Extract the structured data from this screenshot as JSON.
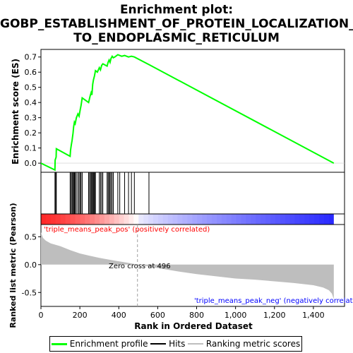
{
  "title_line1": "Enrichment plot:",
  "title_line2": "GOBP_ESTABLISHMENT_OF_PROTEIN_LOCALIZATION_",
  "title_line3": "TO_ENDOPLASMIC_RETICULUM",
  "colors": {
    "enrichment": "#00ff00",
    "hits": "#000000",
    "metric_fill": "#bebebe",
    "pos_label": "#ff0000",
    "neg_label": "#0000ff",
    "zero_cross_line": "#a0a0a0"
  },
  "legend": {
    "enrichment_profile": "Enrichment profile",
    "hits": "Hits",
    "ranking_metric_scores": "Ranking metric scores"
  },
  "annotations": {
    "pos_label": "'triple_means_peak_pos' (positively correlated)",
    "neg_label": "'triple_means_peak_neg' (negatively correlated)",
    "zero_cross": "Zero cross at 496"
  },
  "chart_data": {
    "type": "line",
    "x_range": [
      0,
      1560
    ],
    "x_ticks": [
      0,
      200,
      400,
      600,
      800,
      1000,
      1200,
      1400
    ],
    "x_tick_labels": [
      "0",
      "200",
      "400",
      "600",
      "800",
      "1,000",
      "1,200",
      "1,400"
    ],
    "xlabel": "Rank in Ordered Dataset",
    "enrichment": {
      "ylabel": "Enrichment score (ES)",
      "ylim": [
        -0.06,
        0.75
      ],
      "y_ticks": [
        0.0,
        0.1,
        0.2,
        0.3,
        0.4,
        0.5,
        0.6,
        0.7
      ],
      "y_tick_labels": [
        "0.0",
        "0.1",
        "0.2",
        "0.3",
        "0.4",
        "0.5",
        "0.6",
        "0.7"
      ],
      "x": [
        0,
        72,
        73,
        78,
        79,
        150,
        152,
        156,
        160,
        165,
        168,
        172,
        176,
        182,
        190,
        196,
        202,
        206,
        212,
        245,
        252,
        258,
        262,
        266,
        270,
        275,
        280,
        290,
        300,
        306,
        312,
        318,
        340,
        345,
        350,
        355,
        360,
        366,
        372,
        380,
        395,
        405,
        415,
        430,
        450,
        465,
        480,
        555,
        1505
      ],
      "y": [
        0.0,
        -0.045,
        0.02,
        0.04,
        0.095,
        0.045,
        0.085,
        0.12,
        0.15,
        0.2,
        0.24,
        0.27,
        0.26,
        0.3,
        0.325,
        0.31,
        0.355,
        0.38,
        0.43,
        0.4,
        0.44,
        0.465,
        0.45,
        0.52,
        0.55,
        0.575,
        0.61,
        0.6,
        0.63,
        0.615,
        0.645,
        0.655,
        0.64,
        0.665,
        0.68,
        0.665,
        0.69,
        0.705,
        0.695,
        0.7,
        0.715,
        0.71,
        0.705,
        0.71,
        0.7,
        0.705,
        0.7,
        0.65,
        0.0
      ]
    },
    "hits": [
      72,
      76,
      79,
      150,
      155,
      160,
      164,
      168,
      172,
      176,
      182,
      190,
      196,
      202,
      206,
      212,
      245,
      250,
      255,
      260,
      264,
      268,
      272,
      276,
      280,
      300,
      306,
      312,
      318,
      340,
      345,
      350,
      355,
      360,
      366,
      372,
      395,
      405,
      430,
      450,
      465,
      480,
      555
    ],
    "ranking_metric": {
      "ylabel": "Ranked list metric (Pearson)",
      "ylim": [
        -0.75,
        0.72
      ],
      "y_ticks": [
        0.5,
        0.0,
        -0.5
      ],
      "y_tick_labels": [
        "0.5",
        "0.0",
        "-0.5"
      ],
      "x": [
        0,
        10,
        25,
        50,
        100,
        150,
        200,
        250,
        300,
        350,
        400,
        450,
        496,
        600,
        700,
        800,
        900,
        1000,
        1100,
        1200,
        1300,
        1400,
        1450,
        1480,
        1495,
        1505
      ],
      "y": [
        0.58,
        0.48,
        0.43,
        0.38,
        0.33,
        0.26,
        0.2,
        0.16,
        0.12,
        0.09,
        0.06,
        0.03,
        0.0,
        -0.06,
        -0.12,
        -0.17,
        -0.21,
        -0.25,
        -0.27,
        -0.3,
        -0.33,
        -0.37,
        -0.41,
        -0.46,
        -0.52,
        -0.62
      ]
    },
    "zero_cross": 496,
    "n_genes": 1505
  }
}
